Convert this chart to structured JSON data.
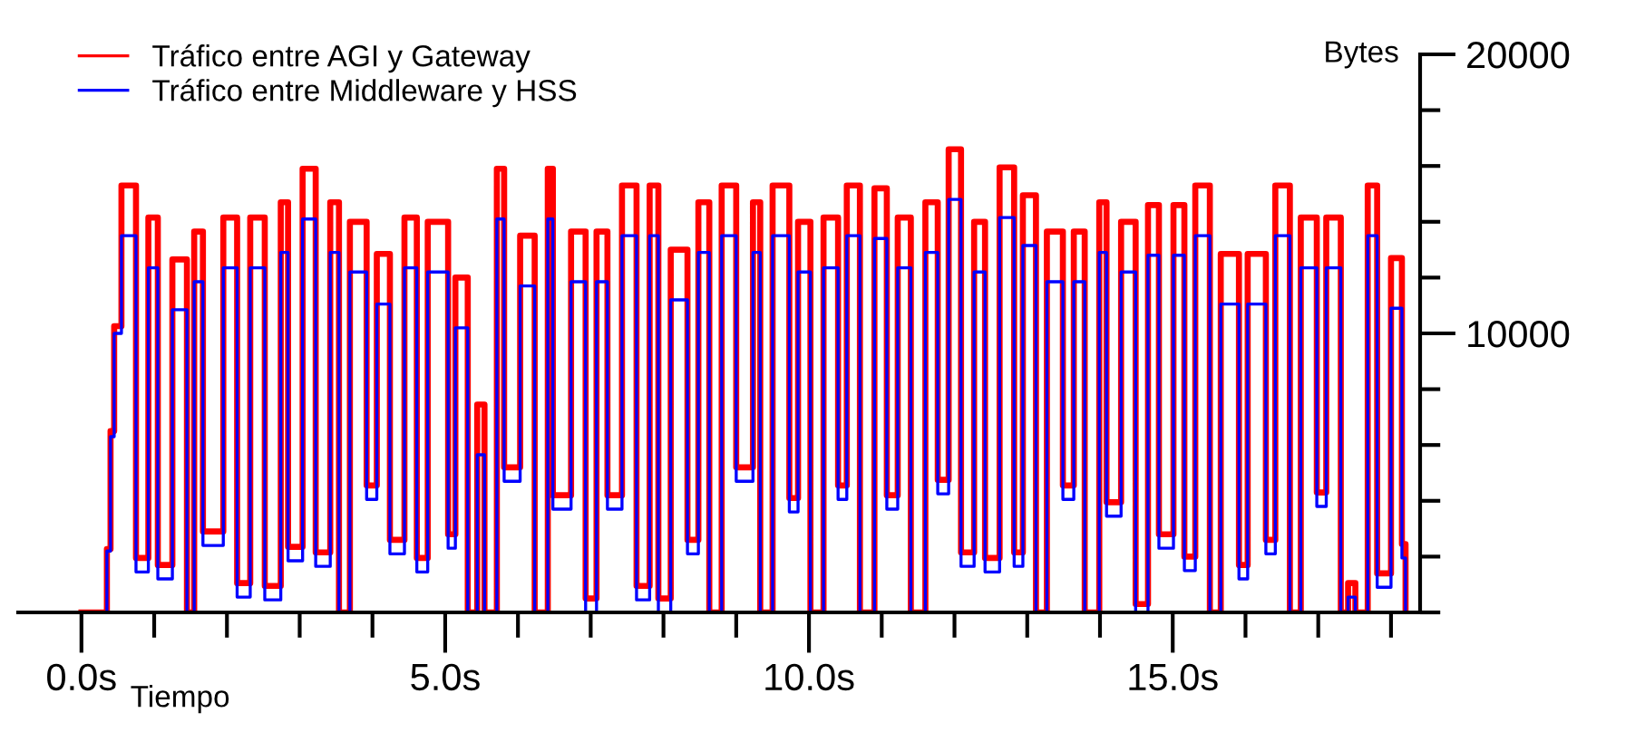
{
  "chart_data": {
    "type": "step",
    "xlabel": "Tiempo",
    "ylabel": "Bytes",
    "x": [
      0.0,
      0.35,
      0.4,
      0.45,
      0.55,
      0.75,
      0.92,
      1.05,
      1.25,
      1.45,
      1.55,
      1.67,
      1.95,
      2.14,
      2.32,
      2.52,
      2.74,
      2.84,
      3.04,
      3.22,
      3.42,
      3.54,
      3.69,
      3.92,
      4.06,
      4.24,
      4.44,
      4.61,
      4.76,
      5.04,
      5.14,
      5.31,
      5.44,
      5.54,
      5.71,
      5.81,
      6.03,
      6.23,
      6.41,
      6.48,
      6.73,
      6.93,
      7.08,
      7.23,
      7.43,
      7.63,
      7.81,
      7.93,
      8.1,
      8.33,
      8.48,
      8.63,
      8.8,
      9.0,
      9.23,
      9.33,
      9.5,
      9.73,
      9.85,
      10.02,
      10.2,
      10.4,
      10.52,
      10.7,
      10.9,
      11.07,
      11.22,
      11.4,
      11.6,
      11.77,
      11.92,
      12.09,
      12.27,
      12.42,
      12.62,
      12.82,
      12.94,
      13.12,
      13.27,
      13.49,
      13.64,
      13.79,
      13.99,
      14.09,
      14.29,
      14.49,
      14.66,
      14.81,
      15.01,
      15.16,
      15.31,
      15.51,
      15.66,
      15.91,
      16.03,
      16.28,
      16.41,
      16.61,
      16.76,
      16.98,
      17.11,
      17.31,
      17.41,
      17.51,
      17.68,
      17.81,
      18.0,
      18.15,
      18.2
    ],
    "series": [
      {
        "name": "Tráfico entre AGI y Gateway",
        "color": "#ff0000",
        "values": [
          0,
          2270,
          6500,
          10260,
          15300,
          1950,
          14150,
          1700,
          12650,
          0,
          13650,
          2900,
          14150,
          1050,
          14150,
          950,
          14700,
          2350,
          15900,
          2150,
          14700,
          0,
          14000,
          4550,
          12850,
          2600,
          14150,
          1950,
          14000,
          2800,
          12000,
          0,
          7450,
          0,
          15900,
          5200,
          13500,
          0,
          15900,
          4200,
          13650,
          500,
          13650,
          4200,
          15300,
          950,
          15300,
          500,
          13000,
          2600,
          14700,
          0,
          15300,
          5200,
          14700,
          0,
          15300,
          4100,
          14000,
          0,
          14150,
          4550,
          15300,
          0,
          15200,
          4200,
          14150,
          0,
          14700,
          4750,
          16600,
          2150,
          14000,
          1950,
          15950,
          2150,
          14950,
          0,
          13650,
          4550,
          13650,
          0,
          14700,
          3950,
          14000,
          300,
          14600,
          2800,
          14600,
          2000,
          15300,
          0,
          12850,
          1700,
          12850,
          2600,
          15300,
          0,
          14150,
          4300,
          14150,
          0,
          1050,
          0,
          15300,
          1400,
          12700,
          2450,
          0
        ]
      },
      {
        "name": "Tráfico entre Middleware y HSS",
        "color": "#0000ff",
        "values": [
          0,
          2200,
          6300,
          10000,
          13500,
          1450,
          12350,
          1200,
          10850,
          0,
          11850,
          2400,
          12350,
          550,
          12350,
          450,
          12900,
          1850,
          14100,
          1650,
          12900,
          0,
          12200,
          4050,
          11050,
          2100,
          12350,
          1450,
          12200,
          2300,
          10200,
          0,
          5650,
          0,
          14100,
          4700,
          11700,
          0,
          14100,
          3700,
          11850,
          0,
          11850,
          3700,
          13500,
          450,
          13500,
          0,
          11200,
          2100,
          12900,
          0,
          13500,
          4700,
          12900,
          0,
          13500,
          3600,
          12200,
          0,
          12350,
          4050,
          13500,
          0,
          13400,
          3700,
          12350,
          0,
          12900,
          4250,
          14800,
          1650,
          12200,
          1450,
          14150,
          1650,
          13150,
          0,
          11850,
          4050,
          11850,
          0,
          12900,
          3450,
          12200,
          0,
          12800,
          2300,
          12800,
          1500,
          13500,
          0,
          11050,
          1200,
          11050,
          2100,
          13500,
          0,
          12350,
          3800,
          12350,
          0,
          550,
          0,
          13500,
          900,
          10900,
          1950,
          0
        ]
      }
    ],
    "xlim": [
      -0.87,
      18.4
    ],
    "ylim": [
      0,
      20000
    ],
    "xticks": [
      {
        "value": 0,
        "label": "0.0s"
      },
      {
        "value": 1,
        "label": null
      },
      {
        "value": 2,
        "label": null
      },
      {
        "value": 3,
        "label": null
      },
      {
        "value": 4,
        "label": null
      },
      {
        "value": 5,
        "label": "5.0s"
      },
      {
        "value": 6,
        "label": null
      },
      {
        "value": 7,
        "label": null
      },
      {
        "value": 8,
        "label": null
      },
      {
        "value": 9,
        "label": null
      },
      {
        "value": 10,
        "label": "10.0s"
      },
      {
        "value": 11,
        "label": null
      },
      {
        "value": 12,
        "label": null
      },
      {
        "value": 13,
        "label": null
      },
      {
        "value": 14,
        "label": null
      },
      {
        "value": 15,
        "label": "15.0s"
      },
      {
        "value": 16,
        "label": null
      },
      {
        "value": 17,
        "label": null
      },
      {
        "value": 18,
        "label": null
      }
    ],
    "yticks": [
      {
        "value": 0,
        "label": null
      },
      {
        "value": 2000,
        "label": null
      },
      {
        "value": 4000,
        "label": null
      },
      {
        "value": 6000,
        "label": null
      },
      {
        "value": 8000,
        "label": null
      },
      10000,
      {
        "value": 12000,
        "label": null
      },
      {
        "value": 14000,
        "label": null
      },
      {
        "value": 16000,
        "label": null
      },
      {
        "value": 18000,
        "label": null
      },
      20000
    ],
    "grid": false,
    "legend": "top left",
    "marker": "none",
    "line_style": "solid"
  }
}
